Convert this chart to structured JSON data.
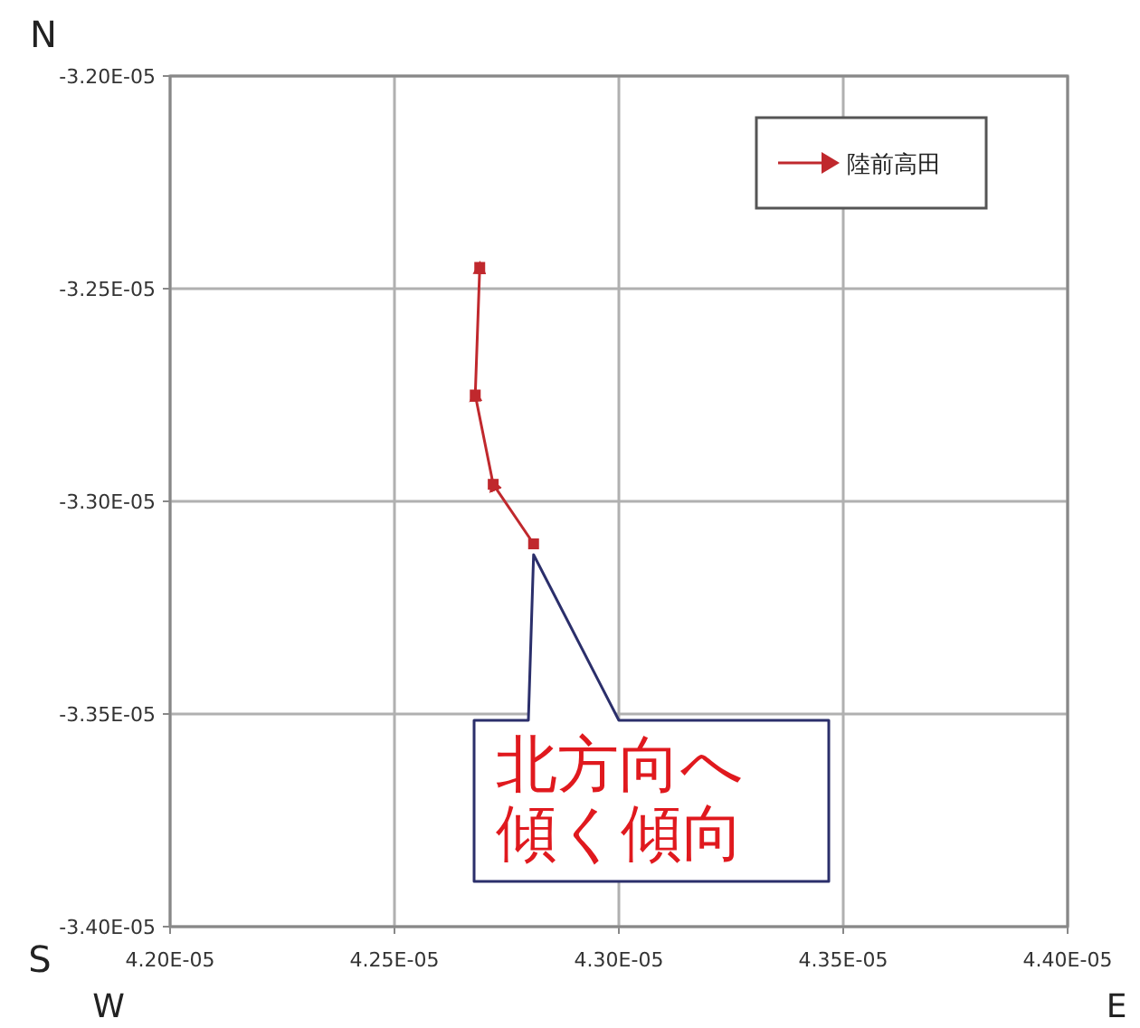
{
  "chart_data": {
    "type": "line",
    "x": [
      4.281e-05,
      4.272e-05,
      4.268e-05,
      4.269e-05
    ],
    "series": [
      {
        "name": "陸前高田",
        "color": "#c0282d",
        "values": [
          -3.31e-05,
          -3.296e-05,
          -3.275e-05,
          -3.245e-05
        ]
      }
    ],
    "xlim": [
      4.2e-05,
      4.4e-05
    ],
    "xticks": [
      {
        "value": 4.2e-05,
        "label": "4.20E-05"
      },
      {
        "value": 4.25e-05,
        "label": "4.25E-05"
      },
      {
        "value": 4.3e-05,
        "label": "4.30E-05"
      },
      {
        "value": 4.35e-05,
        "label": "4.35E-05"
      },
      {
        "value": 4.4e-05,
        "label": "4.40E-05"
      }
    ],
    "ylim": [
      -3.4e-05,
      -3.2e-05
    ],
    "yticks": [
      {
        "value": -3.4e-05,
        "label": "-3.40E-05"
      },
      {
        "value": -3.35e-05,
        "label": "-3.35E-05"
      },
      {
        "value": -3.3e-05,
        "label": "-3.30E-05"
      },
      {
        "value": -3.25e-05,
        "label": "-3.25E-05"
      },
      {
        "value": -3.2e-05,
        "label": "-3.20E-05"
      }
    ],
    "grid": true,
    "legend": "top right",
    "marker": "square",
    "line_style": "solid",
    "annotations": [
      "北方向へ傾く傾向",
      "N",
      "S",
      "W",
      "E"
    ]
  }
}
